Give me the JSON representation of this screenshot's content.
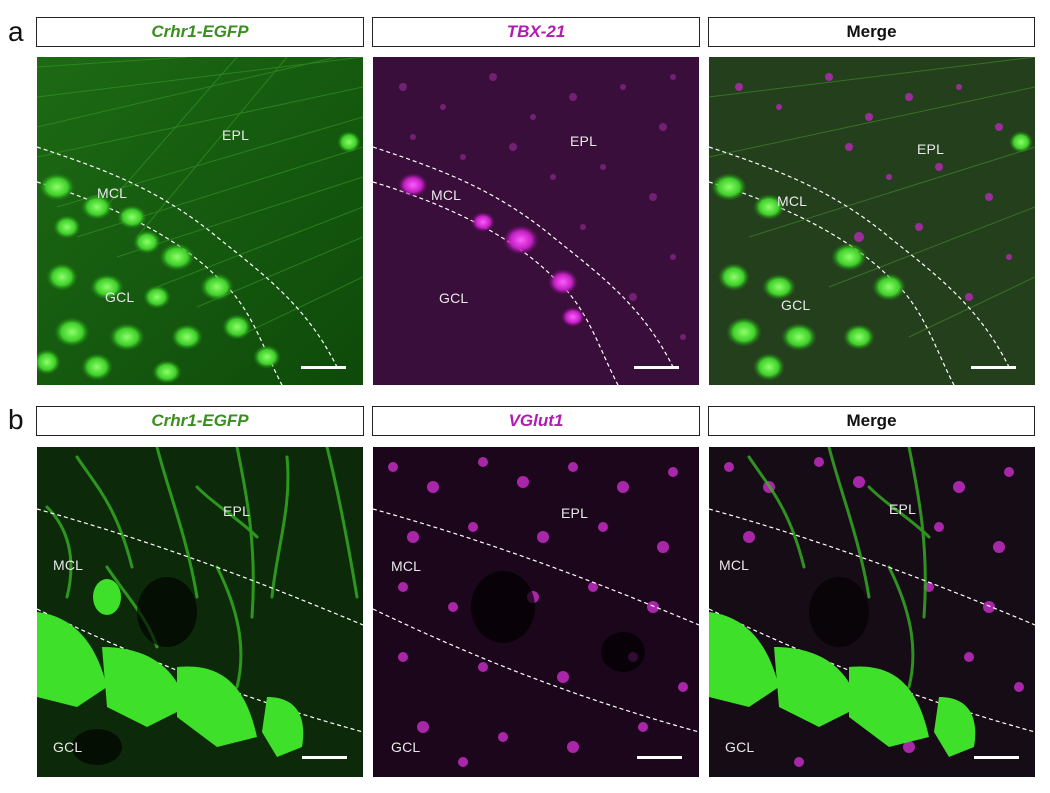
{
  "rows": [
    {
      "letter": "a",
      "headers": [
        "Crhr1-EGFP",
        "TBX-21",
        "Merge"
      ],
      "regions": [
        "EPL",
        "MCL",
        "GCL"
      ]
    },
    {
      "letter": "b",
      "headers": [
        "Crhr1-EGFP",
        "VGlut1",
        "Merge"
      ],
      "regions": [
        "EPL",
        "MCL",
        "GCL"
      ]
    }
  ],
  "colors": {
    "green_header": "#3a8f1e",
    "magenta_header": "#b21ab2",
    "merge_header": "#111111"
  }
}
